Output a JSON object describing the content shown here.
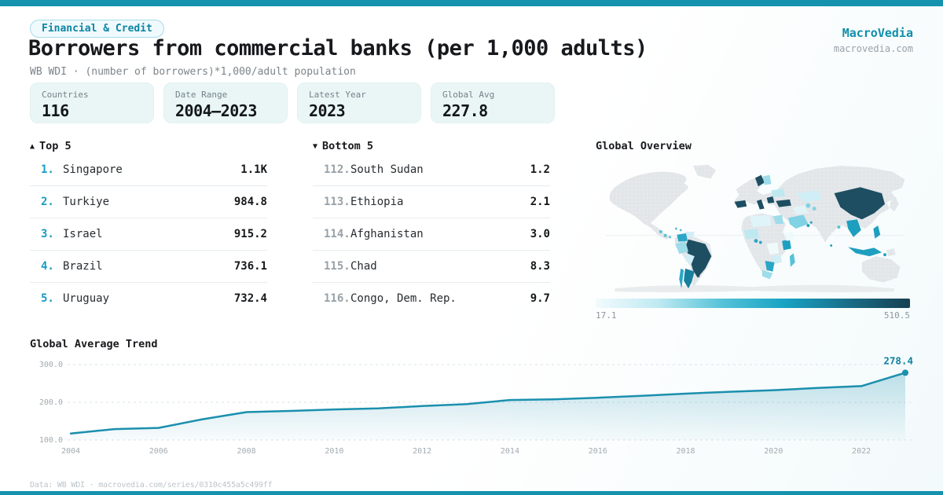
{
  "theme": {
    "accent_teal": "#1492ae",
    "rank_blue": "#1b9ac2",
    "line_color": "#1b8fae",
    "map_dark": "#1d4e62"
  },
  "badge": {
    "label": "Financial & Credit"
  },
  "title": "Borrowers from commercial banks (per 1,000 adults)",
  "subtitle": "WB WDI · (number of borrowers)*1,000/adult population",
  "brand": {
    "name": "MacroVedia",
    "domain": "macrovedia.com"
  },
  "stats": [
    {
      "label": "Countries",
      "value": "116"
    },
    {
      "label": "Date Range",
      "value": "2004–2023"
    },
    {
      "label": "Latest Year",
      "value": "2023"
    },
    {
      "label": "Global Avg",
      "value": "227.8"
    }
  ],
  "top5": {
    "icon": "▲",
    "header": "Top 5",
    "rows": [
      {
        "rank": "1.",
        "name": "Singapore",
        "value": "1.1K"
      },
      {
        "rank": "2.",
        "name": "Turkiye",
        "value": "984.8"
      },
      {
        "rank": "3.",
        "name": "Israel",
        "value": "915.2"
      },
      {
        "rank": "4.",
        "name": "Brazil",
        "value": "736.1"
      },
      {
        "rank": "5.",
        "name": "Uruguay",
        "value": "732.4"
      }
    ]
  },
  "bottom5": {
    "icon": "▼",
    "header": "Bottom 5",
    "rows": [
      {
        "rank": "112.",
        "name": "South Sudan",
        "value": "1.2"
      },
      {
        "rank": "113.",
        "name": "Ethiopia",
        "value": "2.1"
      },
      {
        "rank": "114.",
        "name": "Afghanistan",
        "value": "3.0"
      },
      {
        "rank": "115.",
        "name": "Chad",
        "value": "8.3"
      },
      {
        "rank": "116.",
        "name": "Congo, Dem. Rep.",
        "value": "9.7"
      }
    ]
  },
  "map": {
    "title": "Global Overview",
    "scale_min": "17.1",
    "scale_max": "510.5",
    "scale_colors": [
      "#f2fbfd",
      "#bfe9f2",
      "#56c3d8",
      "#17a3c4",
      "#186f8a",
      "#173f51"
    ]
  },
  "trend": {
    "title": "Global Average Trend"
  },
  "footer": "Data: WB WDI · macrovedia.com/series/0310c455a5c499ff",
  "chart_data": [
    {
      "type": "area",
      "title": "Global Average Trend",
      "xlabel": "",
      "ylabel": "",
      "x": [
        2004,
        2005,
        2006,
        2007,
        2008,
        2009,
        2010,
        2011,
        2012,
        2013,
        2014,
        2015,
        2016,
        2017,
        2018,
        2019,
        2020,
        2021,
        2022,
        2023
      ],
      "values": [
        117,
        129,
        132,
        155,
        174,
        177,
        181,
        184,
        190,
        195,
        206,
        208,
        212,
        217,
        223,
        228,
        232,
        238,
        243,
        278.4
      ],
      "ylim": [
        100,
        300
      ],
      "yticks": [
        {
          "value": 300,
          "label": "300.0"
        },
        {
          "value": 200,
          "label": "200.0"
        },
        {
          "value": 100,
          "label": "100.0"
        }
      ],
      "xticks": [
        2004,
        2006,
        2008,
        2010,
        2012,
        2014,
        2016,
        2018,
        2020,
        2022
      ],
      "grid": true,
      "legend": false,
      "end_label": "278.4",
      "line_color": "#1b8fae"
    },
    {
      "type": "heatmap",
      "title": "Global Overview",
      "legend_min": 17.1,
      "legend_max": 510.5,
      "known_values": {
        "Singapore": 1100,
        "Turkiye": 984.8,
        "Israel": 915.2,
        "Brazil": 736.1,
        "Uruguay": 732.4,
        "South Sudan": 1.2,
        "Ethiopia": 2.1,
        "Afghanistan": 3.0,
        "Chad": 8.3,
        "Congo, Dem. Rep.": 9.7
      }
    }
  ]
}
